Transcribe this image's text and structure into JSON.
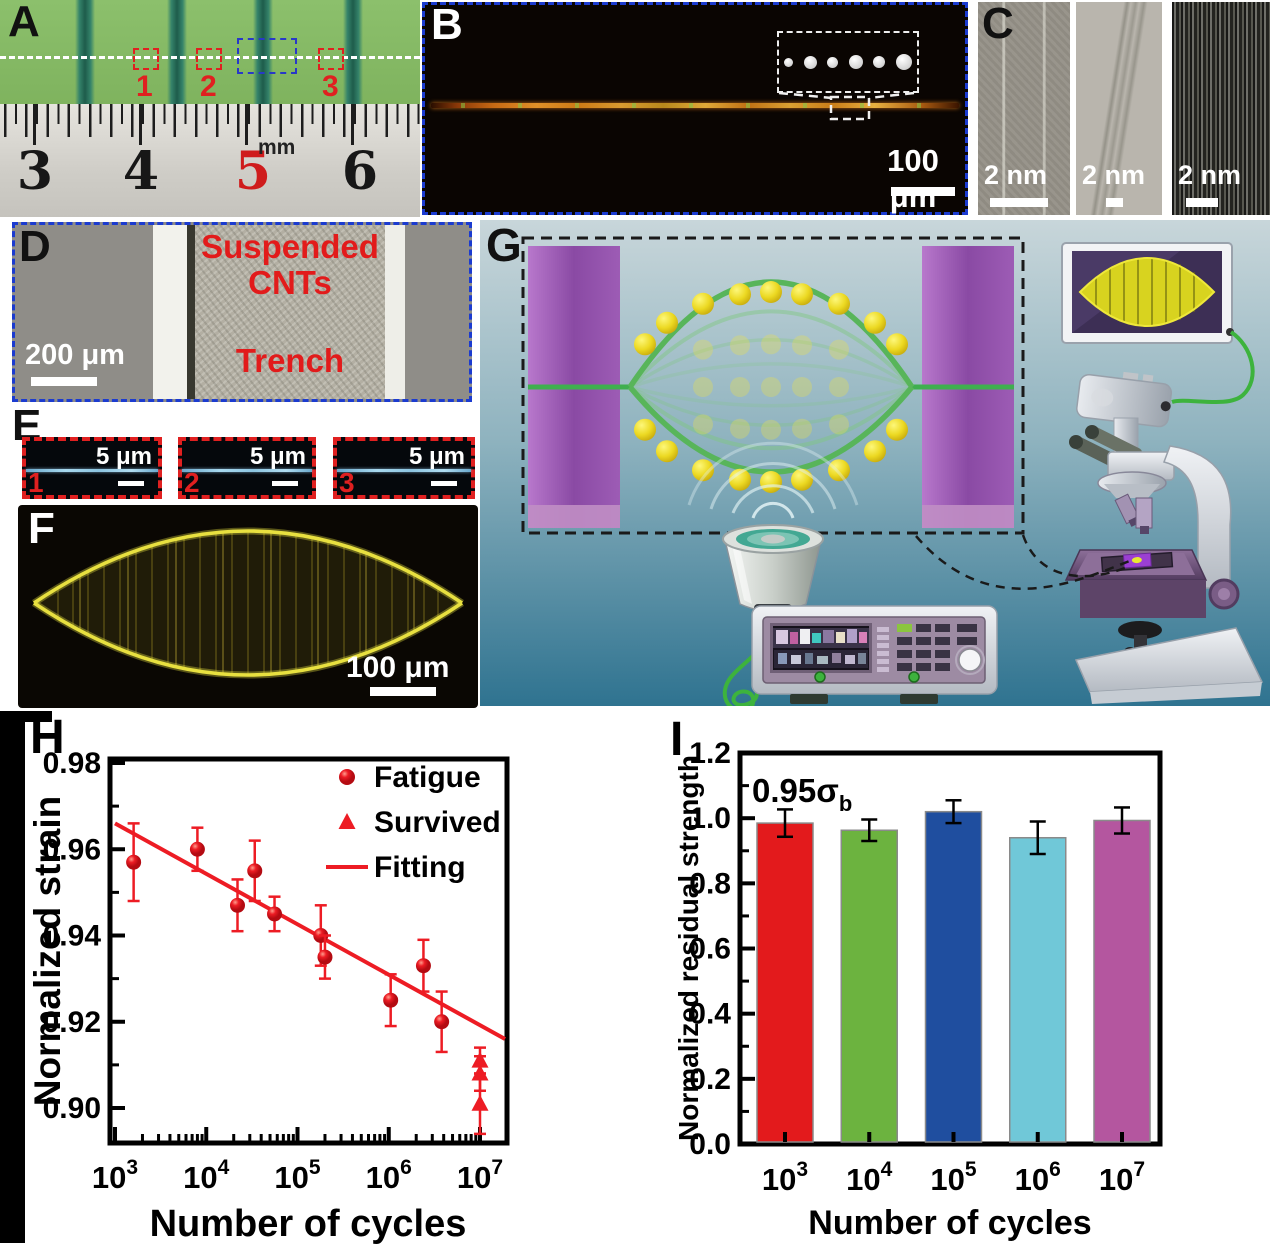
{
  "figure": {
    "panels": {
      "A": {
        "label": "A",
        "box_numbers": [
          "1",
          "2",
          "3"
        ],
        "ruler_numbers": [
          "3",
          "4",
          "5",
          "6"
        ],
        "ruler_highlight": "5",
        "ruler_highlight_color": "#cf1c1c",
        "ruler_unit": "mm"
      },
      "B": {
        "label": "B",
        "scale_bar": "100 μm"
      },
      "C": {
        "label": "C",
        "scale_bars": [
          "2 nm",
          "2 nm",
          "2 nm"
        ]
      },
      "D": {
        "label": "D",
        "annotation_line1": "Suspended",
        "annotation_line2": "CNTs",
        "annotation_trench": "Trench",
        "scale_bar": "200 μm"
      },
      "E": {
        "label": "E",
        "items": [
          {
            "num": "1",
            "scale_bar": "5 μm"
          },
          {
            "num": "2",
            "scale_bar": "5 μm"
          },
          {
            "num": "3",
            "scale_bar": "5 μm"
          }
        ]
      },
      "F": {
        "label": "F",
        "scale_bar": "100 μm"
      },
      "G": {
        "label": "G"
      },
      "H": {
        "label": "H"
      },
      "I": {
        "label": "I"
      }
    }
  },
  "chart_data": [
    {
      "id": "H",
      "type": "scatter",
      "x_scale": "log",
      "title": "",
      "xlabel": "Number of cycles",
      "ylabel": "Normalized strain",
      "x_tick_exponents": [
        3,
        4,
        5,
        6,
        7
      ],
      "xlim_log": [
        2.95,
        7.3
      ],
      "y_ticks": [
        0.9,
        0.92,
        0.94,
        0.96,
        0.98
      ],
      "ylim": [
        0.892,
        0.981
      ],
      "accent_color": "#ed1c24",
      "legend_position": "top-right",
      "series": [
        {
          "name": "Fatigue",
          "marker": "circle",
          "points": [
            {
              "x": 1600,
              "y": 0.957,
              "err": 0.009
            },
            {
              "x": 8000,
              "y": 0.96,
              "err": 0.005
            },
            {
              "x": 22000,
              "y": 0.947,
              "err": 0.006
            },
            {
              "x": 34000,
              "y": 0.955,
              "err": 0.007
            },
            {
              "x": 56000,
              "y": 0.945,
              "err": 0.004
            },
            {
              "x": 180000,
              "y": 0.94,
              "err": 0.007
            },
            {
              "x": 200000,
              "y": 0.935,
              "err": 0.005
            },
            {
              "x": 1050000,
              "y": 0.925,
              "err": 0.006
            },
            {
              "x": 2400000,
              "y": 0.933,
              "err": 0.006
            },
            {
              "x": 3800000,
              "y": 0.92,
              "err": 0.007
            }
          ]
        },
        {
          "name": "Survived",
          "marker": "triangle",
          "points": [
            {
              "x": 10000000,
              "y": 0.911,
              "err": 0.003
            },
            {
              "x": 10000000,
              "y": 0.908,
              "err": 0.004
            },
            {
              "x": 10000000,
              "y": 0.901,
              "err": 0.007
            }
          ]
        },
        {
          "name": "Fitting",
          "marker": "line",
          "fit_line": {
            "x1": 1000,
            "y1": 0.966,
            "x2": 20000000,
            "y2": 0.916
          }
        }
      ]
    },
    {
      "id": "I",
      "type": "bar",
      "title": "",
      "xlabel": "Number of cycles",
      "ylabel": "Normalized residual strength",
      "annotation": {
        "text": "0.95σ",
        "sub": "b"
      },
      "category_exponents": [
        3,
        4,
        5,
        6,
        7
      ],
      "values": [
        0.985,
        0.963,
        1.02,
        0.94,
        0.993
      ],
      "errors": [
        0.042,
        0.033,
        0.035,
        0.05,
        0.04
      ],
      "bar_colors": [
        "#e31a1c",
        "#6cb33f",
        "#1f4e9f",
        "#70c8d8",
        "#b4569f"
      ],
      "y_ticks": [
        0,
        0.2,
        0.4,
        0.6,
        0.8,
        1.0,
        1.2
      ],
      "ylim": [
        0,
        1.2
      ],
      "grid": false
    }
  ]
}
